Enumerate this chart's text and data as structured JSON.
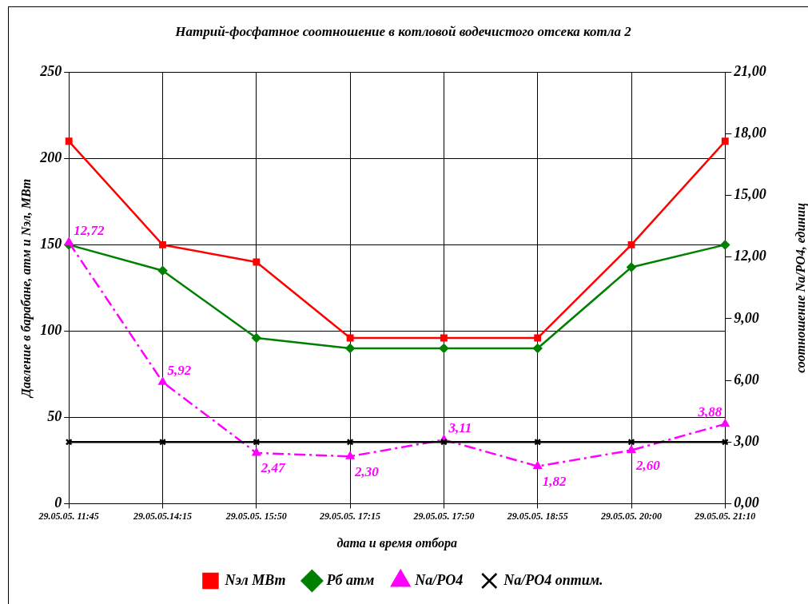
{
  "chart_data": {
    "type": "line",
    "title": "Натрий-фосфатное соотношение в котловой водечистого отсека котла 2",
    "xlabel": "дата и время отбора",
    "ylabel": "Давление в барабане, атм и Nэл, МВт",
    "y2label": "соотношение Na/PO4, единиц",
    "categories": [
      "29.05.05. 11:45",
      "29.05.05.14:15",
      "29.05.05. 15:50",
      "29.05.05. 17:15",
      "29.05.05. 17:50",
      "29.05.05. 18:55",
      "29.05.05. 20:00",
      "29.05.05. 21:10"
    ],
    "series": [
      {
        "name": "Nэл МВт",
        "color": "#ff0000",
        "marker": "square",
        "line_style": "solid",
        "values": [
          210,
          150,
          140,
          96,
          96,
          96,
          150,
          210
        ]
      },
      {
        "name": "Рб атм",
        "color": "#008000",
        "marker": "diamond",
        "line_style": "solid",
        "values": [
          150,
          135,
          96,
          90,
          90,
          90,
          137,
          150
        ]
      },
      {
        "name": "Na/PO4",
        "color": "#ff00ff",
        "marker": "triangle",
        "line_style": "dashed",
        "axis": "y2",
        "values": [
          12.72,
          5.92,
          2.47,
          2.3,
          3.11,
          1.82,
          2.6,
          3.88
        ],
        "value_labels": [
          "12,72",
          "5,92",
          "2,47",
          "2,30",
          "3,11",
          "1,82",
          "2,60",
          "3,88"
        ]
      },
      {
        "name": "Na/PO4 оптим.",
        "color": "#000000",
        "marker": "cross",
        "line_style": "solid",
        "axis": "y2",
        "values": [
          3,
          3,
          3,
          3,
          3,
          3,
          3,
          3
        ]
      }
    ],
    "ylim": [
      0,
      250
    ],
    "yticks": [
      0,
      50,
      100,
      150,
      200,
      250
    ],
    "y2lim": [
      0,
      21
    ],
    "y2ticks": [
      {
        "value": 0,
        "label": "0,00"
      },
      {
        "value": 3,
        "label": "3,00"
      },
      {
        "value": 6,
        "label": "6,00"
      },
      {
        "value": 9,
        "label": "9,00"
      },
      {
        "value": 12,
        "label": "12,00"
      },
      {
        "value": 15,
        "label": "15,00"
      },
      {
        "value": 18,
        "label": "18,00"
      },
      {
        "value": 21,
        "label": "21,00"
      }
    ],
    "grid": true,
    "legend": "bottom"
  }
}
